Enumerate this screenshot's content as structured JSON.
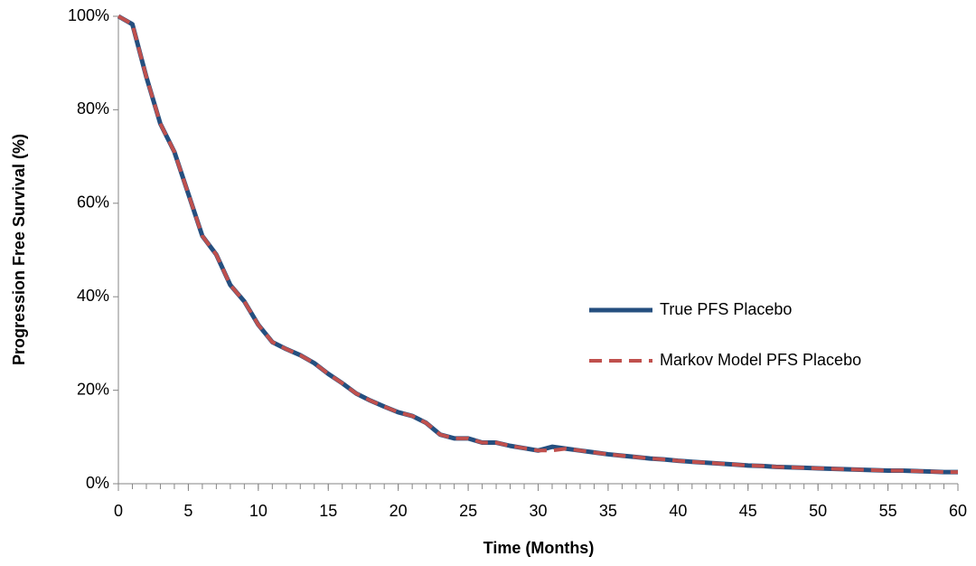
{
  "chart_data": {
    "type": "line",
    "x_label": "Time (Months)",
    "y_label": "Progression Free Survival (%)",
    "x": [
      0,
      1,
      2,
      3,
      4,
      5,
      6,
      7,
      8,
      9,
      10,
      11,
      12,
      13,
      14,
      15,
      16,
      17,
      18,
      19,
      20,
      21,
      22,
      23,
      24,
      25,
      26,
      27,
      28,
      29,
      30,
      31,
      32,
      33,
      34,
      35,
      36,
      37,
      38,
      39,
      40,
      41,
      42,
      43,
      44,
      45,
      46,
      47,
      48,
      49,
      50,
      51,
      52,
      53,
      54,
      55,
      56,
      57,
      58,
      59,
      60
    ],
    "series": [
      {
        "name": "True PFS Placebo",
        "color": "#254f7f",
        "dash": false,
        "values": [
          100,
          98.3,
          87,
          77,
          71,
          62,
          53,
          49,
          42.5,
          39,
          34,
          30.3,
          28.8,
          27.5,
          25.8,
          23.5,
          21.5,
          19.3,
          17.8,
          16.5,
          15.3,
          14.5,
          13,
          10.5,
          9.7,
          9.7,
          8.8,
          8.8,
          8.1,
          7.6,
          7.1,
          7.9,
          7.5,
          7.1,
          6.7,
          6.3,
          6.0,
          5.7,
          5.4,
          5.2,
          4.9,
          4.7,
          4.5,
          4.3,
          4.1,
          3.9,
          3.8,
          3.6,
          3.5,
          3.4,
          3.3,
          3.2,
          3.1,
          3.0,
          2.9,
          2.8,
          2.8,
          2.7,
          2.6,
          2.5,
          2.5
        ]
      },
      {
        "name": "Markov Model PFS Placebo",
        "color": "#c0504d",
        "dash": true,
        "values": [
          100,
          98.3,
          87,
          77,
          71,
          62,
          53,
          49,
          42.5,
          39,
          34,
          30.3,
          28.8,
          27.5,
          25.8,
          23.5,
          21.5,
          19.3,
          17.8,
          16.5,
          15.3,
          14.5,
          13,
          10.5,
          9.7,
          9.7,
          8.8,
          8.8,
          8.1,
          7.6,
          7.1,
          7.1,
          7.5,
          7.1,
          6.7,
          6.3,
          6.0,
          5.7,
          5.4,
          5.2,
          4.9,
          4.7,
          4.5,
          4.3,
          4.1,
          3.9,
          3.8,
          3.6,
          3.5,
          3.4,
          3.3,
          3.2,
          3.1,
          3.0,
          2.9,
          2.8,
          2.8,
          2.7,
          2.6,
          2.5,
          2.5
        ]
      }
    ],
    "xlim": [
      0,
      60
    ],
    "xticks": [
      0,
      5,
      10,
      15,
      20,
      25,
      30,
      35,
      40,
      45,
      50,
      55,
      60
    ],
    "ylim": [
      0,
      100
    ],
    "yticks": [
      {
        "value": 0,
        "label": "0%"
      },
      {
        "value": 20,
        "label": "20%"
      },
      {
        "value": 40,
        "label": "40%"
      },
      {
        "value": 60,
        "label": "60%"
      },
      {
        "value": 80,
        "label": "80%"
      },
      {
        "value": 100,
        "label": "100%"
      }
    ]
  }
}
